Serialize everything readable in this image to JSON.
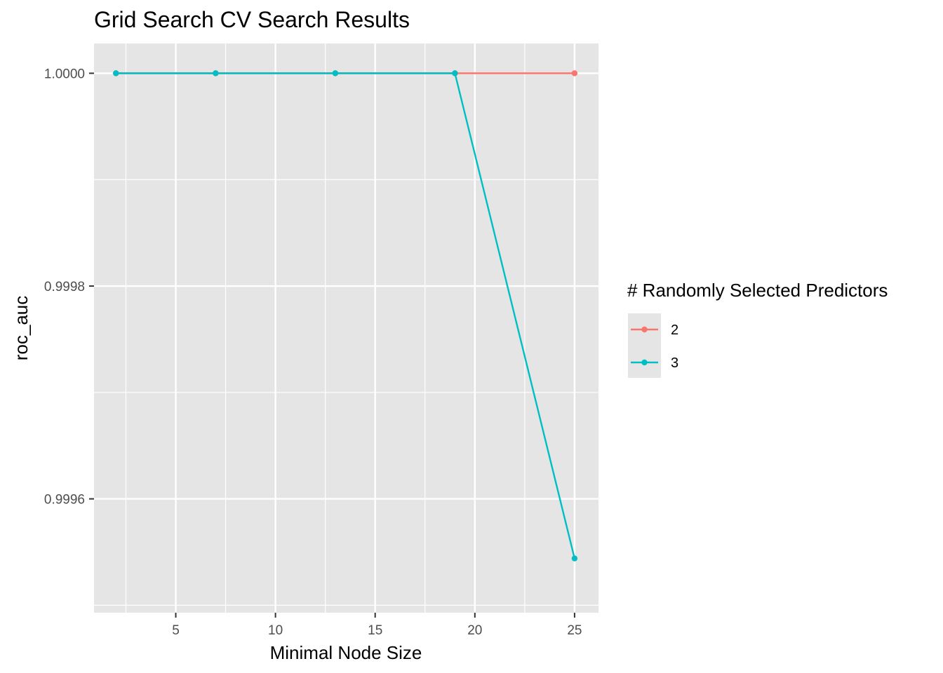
{
  "chart_data": {
    "type": "line",
    "title": "Grid Search CV Search Results",
    "xlabel": "Minimal Node Size",
    "ylabel": "roc_auc",
    "xlim": [
      0.9,
      26.2
    ],
    "ylim": [
      0.999493,
      1.000028
    ],
    "x_ticks": [
      5,
      10,
      15,
      20,
      25
    ],
    "x_tick_labels": [
      "5",
      "10",
      "15",
      "20",
      "25"
    ],
    "y_ticks": [
      0.9996,
      0.9998,
      1.0
    ],
    "y_tick_labels": [
      "0.9996",
      "0.9998",
      "1.0000"
    ],
    "grid": true,
    "legend": {
      "title": "# Randomly Selected Predictors",
      "position": "right"
    },
    "series": [
      {
        "name": "2",
        "color": "#F8766D",
        "x": [
          2,
          7,
          13,
          19,
          25
        ],
        "y": [
          1.0,
          1.0,
          1.0,
          1.0,
          1.0
        ]
      },
      {
        "name": "3",
        "color": "#00BFC4",
        "x": [
          2,
          7,
          13,
          19,
          25
        ],
        "y": [
          1.0,
          1.0,
          1.0,
          1.0,
          0.999544
        ]
      }
    ]
  }
}
